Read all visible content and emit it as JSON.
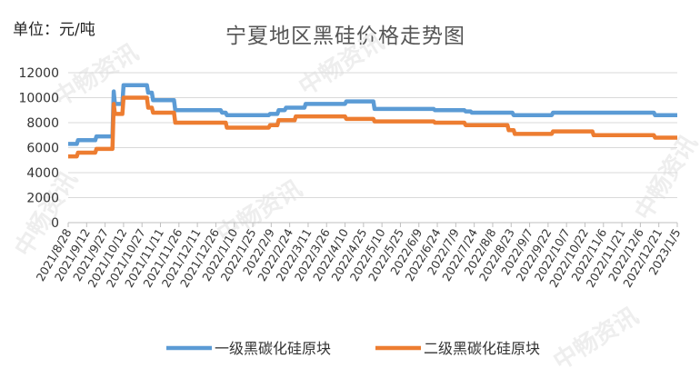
{
  "header": {
    "unit_label": "单位：元/吨",
    "title": "宁夏地区黑硅价格走势图"
  },
  "watermark": "中畅资讯",
  "chart_data": {
    "type": "line",
    "title": "宁夏地区黑硅价格走势图",
    "ylabel": "单位：元/吨",
    "ylim": [
      0,
      12000
    ],
    "yticks": [
      0,
      2000,
      4000,
      6000,
      8000,
      10000,
      12000
    ],
    "grid": "horizontal",
    "legend_position": "bottom",
    "x_start": "2021/8/28",
    "x_end": "2023/1/5",
    "x_ticks": [
      "2021/8/28",
      "2021/9/12",
      "2021/9/27",
      "2021/10/12",
      "2021/10/27",
      "2021/11/11",
      "2021/11/26",
      "2021/12/11",
      "2021/12/26",
      "2022/1/10",
      "2022/1/25",
      "2022/2/9",
      "2022/2/24",
      "2022/3/11",
      "2022/3/26",
      "2022/4/10",
      "2022/4/25",
      "2022/5/10",
      "2022/5/25",
      "2022/6/9",
      "2022/6/24",
      "2022/7/9",
      "2022/7/24",
      "2022/8/8",
      "2022/8/23",
      "2022/9/7",
      "2022/9/22",
      "2022/10/7",
      "2022/10/22",
      "2022/11/6",
      "2022/11/21",
      "2022/12/6",
      "2022/12/21",
      "2023/1/5"
    ],
    "series": [
      {
        "name": "一级黑碳化硅原块",
        "color": "#5b9bd5",
        "points": [
          [
            "2021/8/28",
            6300
          ],
          [
            "2021/9/4",
            6300
          ],
          [
            "2021/9/5",
            6600
          ],
          [
            "2021/9/19",
            6600
          ],
          [
            "2021/9/20",
            6900
          ],
          [
            "2021/10/3",
            6900
          ],
          [
            "2021/10/4",
            10500
          ],
          [
            "2021/10/5",
            9500
          ],
          [
            "2021/10/11",
            9500
          ],
          [
            "2021/10/12",
            11000
          ],
          [
            "2021/10/31",
            11000
          ],
          [
            "2021/11/1",
            10400
          ],
          [
            "2021/11/4",
            10400
          ],
          [
            "2021/11/5",
            9800
          ],
          [
            "2021/11/22",
            9800
          ],
          [
            "2021/11/23",
            9000
          ],
          [
            "2021/12/30",
            9000
          ],
          [
            "2021/12/31",
            8800
          ],
          [
            "2022/1/3",
            8800
          ],
          [
            "2022/1/4",
            8600
          ],
          [
            "2022/2/7",
            8600
          ],
          [
            "2022/2/8",
            8700
          ],
          [
            "2022/2/14",
            8700
          ],
          [
            "2022/2/15",
            9000
          ],
          [
            "2022/2/20",
            9000
          ],
          [
            "2022/2/21",
            9200
          ],
          [
            "2022/3/8",
            9200
          ],
          [
            "2022/3/9",
            9500
          ],
          [
            "2022/4/10",
            9500
          ],
          [
            "2022/4/11",
            9700
          ],
          [
            "2022/5/3",
            9700
          ],
          [
            "2022/5/4",
            9100
          ],
          [
            "2022/6/21",
            9100
          ],
          [
            "2022/6/22",
            9000
          ],
          [
            "2022/7/16",
            9000
          ],
          [
            "2022/7/17",
            8900
          ],
          [
            "2022/7/21",
            8900
          ],
          [
            "2022/7/22",
            8800
          ],
          [
            "2022/8/24",
            8800
          ],
          [
            "2022/8/25",
            8600
          ],
          [
            "2022/9/25",
            8600
          ],
          [
            "2022/9/26",
            8800
          ],
          [
            "2022/12/17",
            8800
          ],
          [
            "2022/12/18",
            8600
          ],
          [
            "2023/1/5",
            8600
          ]
        ]
      },
      {
        "name": "二级黑碳化硅原块",
        "color": "#ed7d31",
        "points": [
          [
            "2021/8/28",
            5300
          ],
          [
            "2021/9/4",
            5300
          ],
          [
            "2021/9/5",
            5600
          ],
          [
            "2021/9/19",
            5600
          ],
          [
            "2021/9/20",
            5900
          ],
          [
            "2021/10/3",
            5900
          ],
          [
            "2021/10/4",
            9500
          ],
          [
            "2021/10/5",
            8700
          ],
          [
            "2021/10/11",
            8700
          ],
          [
            "2021/10/12",
            10000
          ],
          [
            "2021/10/31",
            10000
          ],
          [
            "2021/11/1",
            9200
          ],
          [
            "2021/11/4",
            9200
          ],
          [
            "2021/11/5",
            8800
          ],
          [
            "2021/11/22",
            8800
          ],
          [
            "2021/11/23",
            8000
          ],
          [
            "2022/1/3",
            8000
          ],
          [
            "2022/1/4",
            7600
          ],
          [
            "2022/2/7",
            7600
          ],
          [
            "2022/2/8",
            7800
          ],
          [
            "2022/2/14",
            7800
          ],
          [
            "2022/2/15",
            8200
          ],
          [
            "2022/2/28",
            8200
          ],
          [
            "2022/3/1",
            8500
          ],
          [
            "2022/4/10",
            8500
          ],
          [
            "2022/4/11",
            8300
          ],
          [
            "2022/5/3",
            8300
          ],
          [
            "2022/5/4",
            8100
          ],
          [
            "2022/6/21",
            8100
          ],
          [
            "2022/6/22",
            8000
          ],
          [
            "2022/7/16",
            8000
          ],
          [
            "2022/7/17",
            7800
          ],
          [
            "2022/8/20",
            7800
          ],
          [
            "2022/8/21",
            7400
          ],
          [
            "2022/8/25",
            7400
          ],
          [
            "2022/8/26",
            7100
          ],
          [
            "2022/9/25",
            7100
          ],
          [
            "2022/9/26",
            7300
          ],
          [
            "2022/10/28",
            7300
          ],
          [
            "2022/10/29",
            7000
          ],
          [
            "2022/12/17",
            7000
          ],
          [
            "2022/12/18",
            6800
          ],
          [
            "2023/1/5",
            6800
          ]
        ]
      }
    ]
  }
}
